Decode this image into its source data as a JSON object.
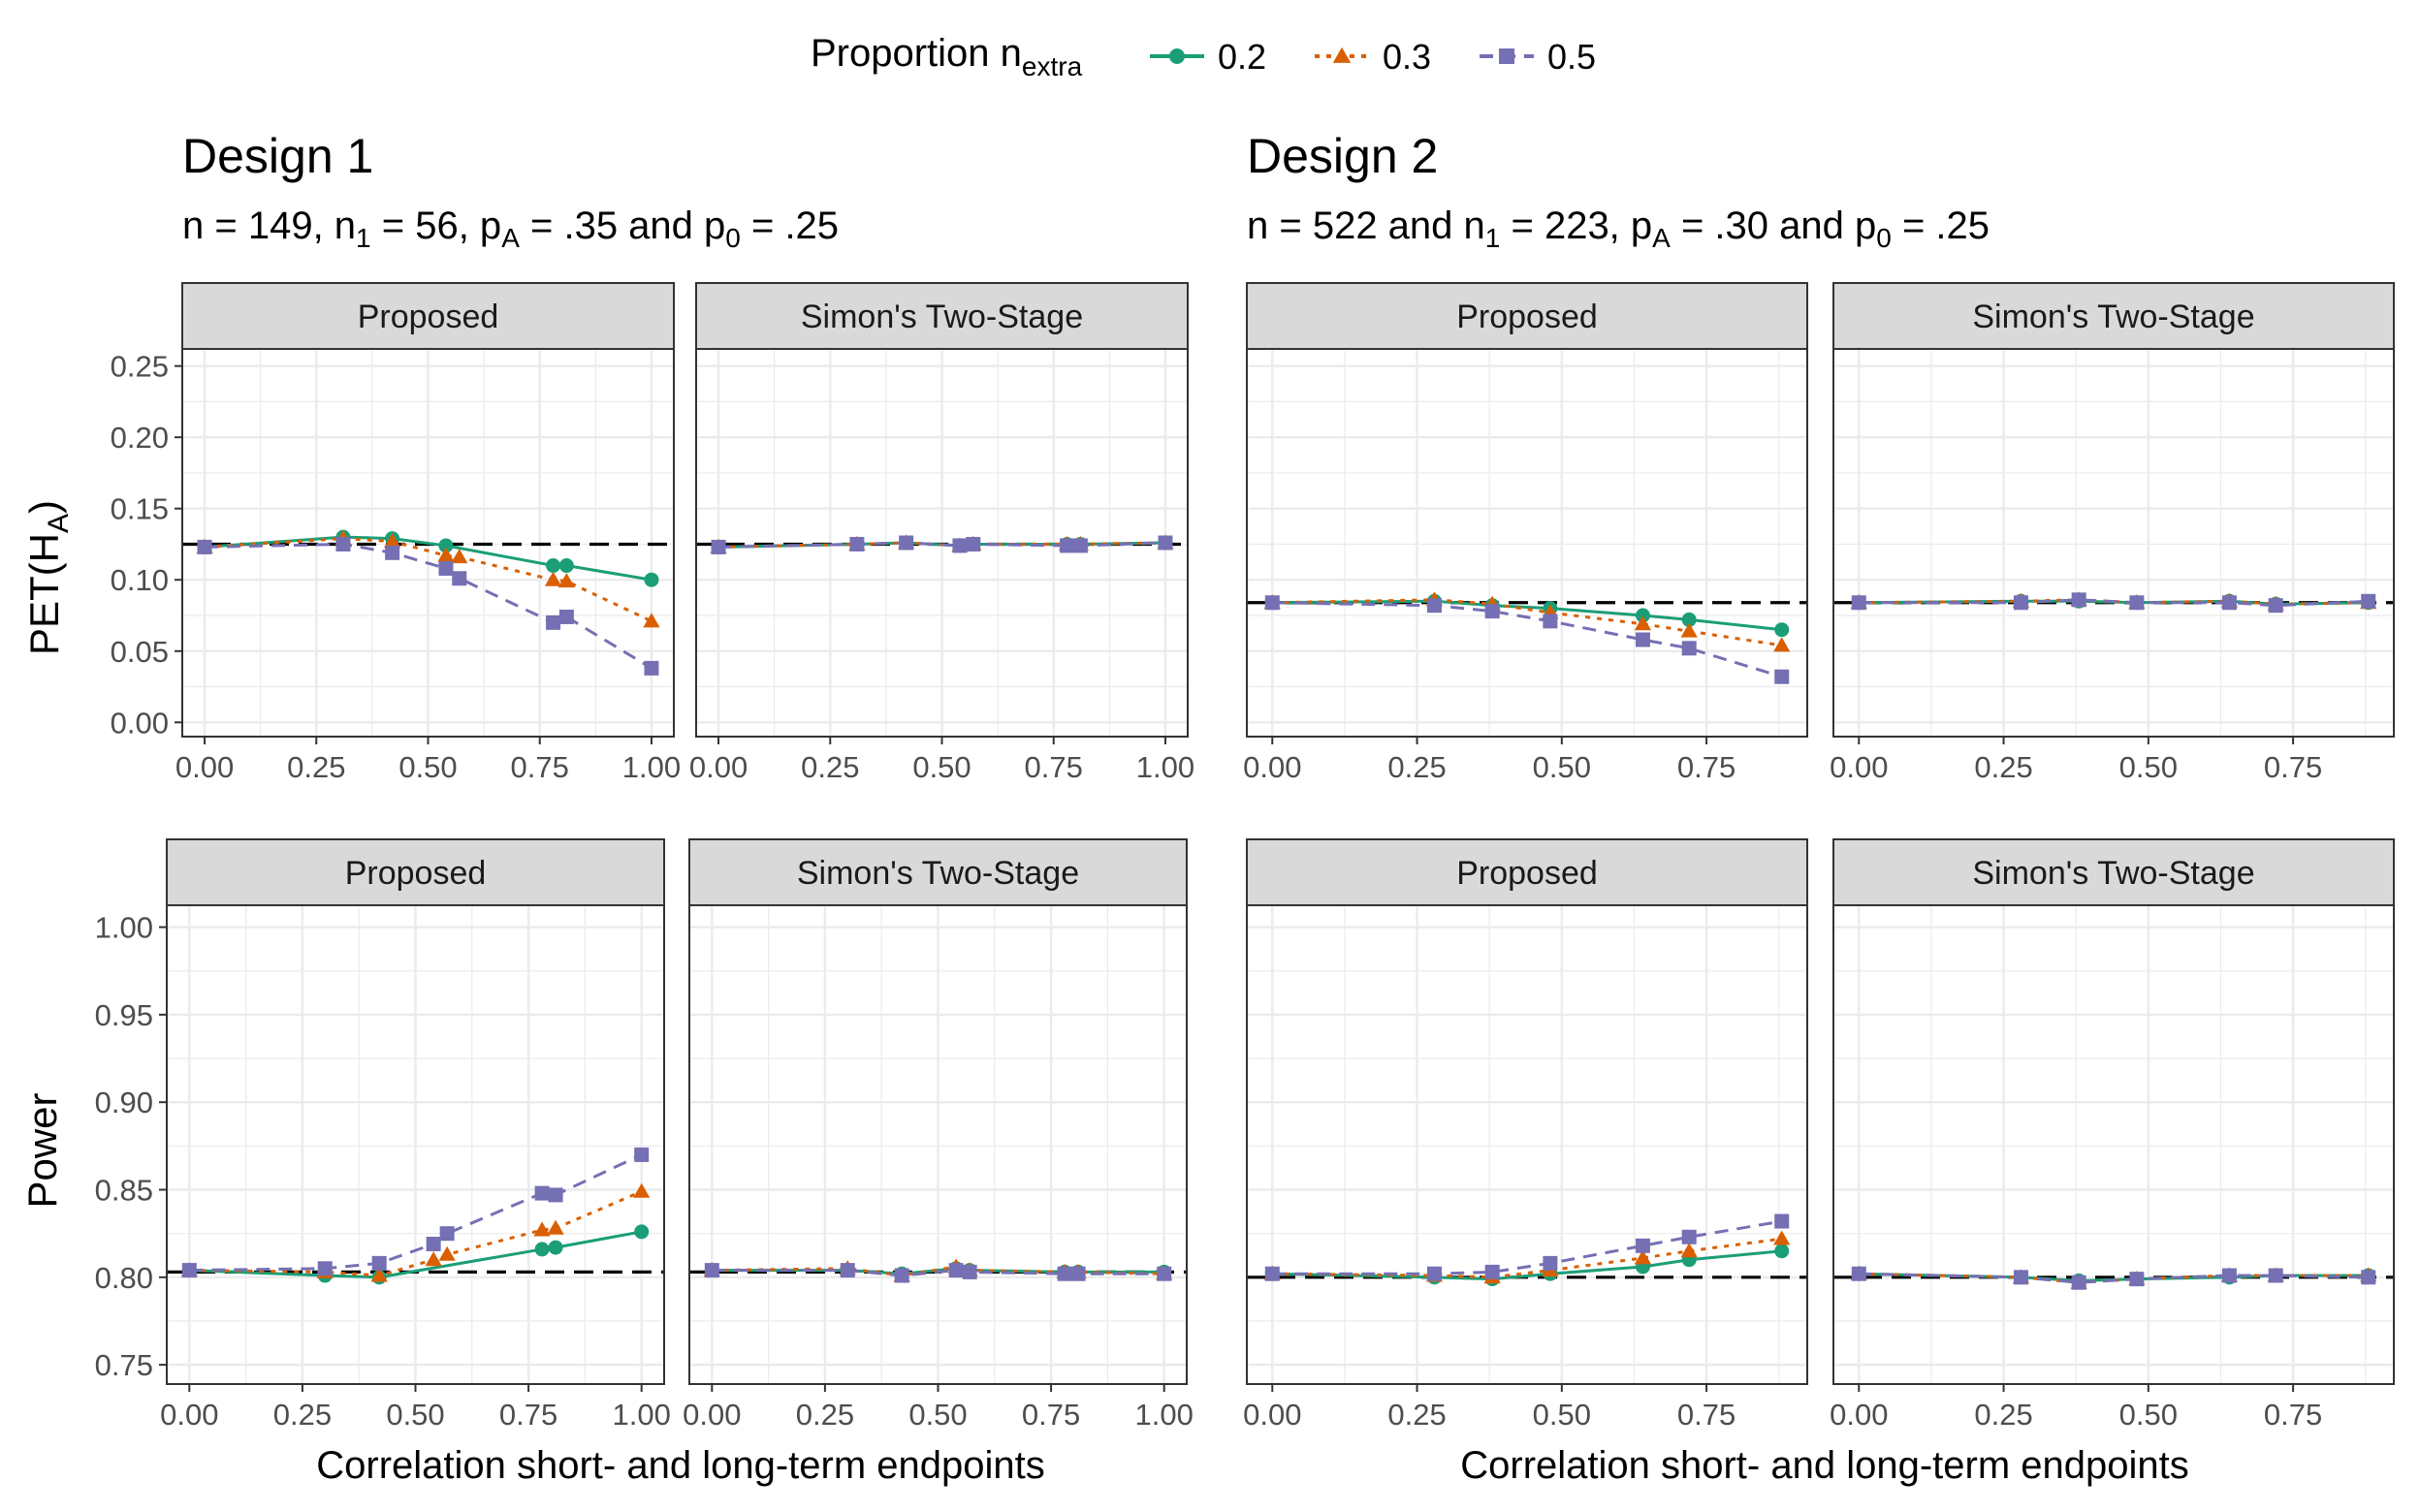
{
  "legend": {
    "title_main": "Proportion n",
    "title_sub": "extra",
    "entries": [
      {
        "label": "0.2",
        "color": "#1B9E77",
        "shape": "circle",
        "dash": "solid"
      },
      {
        "label": "0.3",
        "color": "#D95F02",
        "shape": "triangle",
        "dash": "dotted"
      },
      {
        "label": "0.5",
        "color": "#7570B3",
        "shape": "square",
        "dash": "dashed"
      }
    ]
  },
  "design1": {
    "title": "Design 1",
    "subtitle_parts": [
      {
        "t": "n = 149, n"
      },
      {
        "t": "1",
        "sub": true
      },
      {
        "t": " = 56, p"
      },
      {
        "t": "A",
        "sub": true
      },
      {
        "t": " = .35 and p"
      },
      {
        "t": "0",
        "sub": true
      },
      {
        "t": " = .25"
      }
    ]
  },
  "design2": {
    "title": "Design 2",
    "subtitle_parts": [
      {
        "t": "n = 522 and n"
      },
      {
        "t": "1",
        "sub": true
      },
      {
        "t": " = 223, p"
      },
      {
        "t": "A",
        "sub": true
      },
      {
        "t": " = .30 and p"
      },
      {
        "t": "0",
        "sub": true
      },
      {
        "t": " = .25"
      }
    ]
  },
  "xlabel": "Correlation short- and long-term endpoints",
  "ylabel_pet": {
    "main": "PET(H",
    "sub": "A",
    "close": ")"
  },
  "ylabel_power": "Power",
  "chart_data": [
    {
      "id": "d1-pet-proposed",
      "type": "line",
      "strip": "Proposed",
      "xlim": [
        -0.05,
        1.05
      ],
      "ylim": [
        -0.01,
        0.262
      ],
      "xticks": [
        0,
        0.25,
        0.5,
        0.75,
        1.0
      ],
      "xtick_labels": [
        "0.00",
        "0.25",
        "0.50",
        "0.75",
        "1.00"
      ],
      "yticks": [
        0,
        0.05,
        0.1,
        0.15,
        0.2,
        0.25
      ],
      "ytick_labels": [
        "0.00",
        "0.05",
        "0.10",
        "0.15",
        "0.20",
        "0.25"
      ],
      "reference": 0.125,
      "series": [
        {
          "name": "0.2",
          "x": [
            0,
            0.31,
            0.42,
            0.54,
            0.78,
            0.81,
            1.0
          ],
          "y": [
            0.123,
            0.13,
            0.129,
            0.124,
            0.11,
            0.11,
            0.1
          ]
        },
        {
          "name": "0.3",
          "x": [
            0,
            0.31,
            0.42,
            0.54,
            0.57,
            0.78,
            0.81,
            1.0
          ],
          "y": [
            0.123,
            0.129,
            0.127,
            0.117,
            0.116,
            0.1,
            0.099,
            0.071
          ]
        },
        {
          "name": "0.5",
          "x": [
            0,
            0.31,
            0.42,
            0.54,
            0.57,
            0.78,
            0.81,
            1.0
          ],
          "y": [
            0.123,
            0.125,
            0.119,
            0.108,
            0.101,
            0.07,
            0.074,
            0.038
          ]
        }
      ]
    },
    {
      "id": "d1-pet-simon",
      "type": "line",
      "strip": "Simon's Two-Stage",
      "xlim": [
        -0.05,
        1.05
      ],
      "ylim": [
        -0.01,
        0.262
      ],
      "xticks": [
        0,
        0.25,
        0.5,
        0.75,
        1.0
      ],
      "xtick_labels": [
        "0.00",
        "0.25",
        "0.50",
        "0.75",
        "1.00"
      ],
      "yticks": [
        0,
        0.05,
        0.1,
        0.15,
        0.2,
        0.25
      ],
      "ytick_labels": [],
      "reference": 0.125,
      "series": [
        {
          "name": "0.2",
          "x": [
            0,
            0.31,
            0.42,
            0.54,
            0.57,
            0.78,
            0.81,
            1.0
          ],
          "y": [
            0.123,
            0.125,
            0.126,
            0.124,
            0.125,
            0.125,
            0.125,
            0.126
          ]
        },
        {
          "name": "0.3",
          "x": [
            0,
            0.31,
            0.42,
            0.54,
            0.57,
            0.78,
            0.81,
            1.0
          ],
          "y": [
            0.123,
            0.125,
            0.126,
            0.124,
            0.125,
            0.125,
            0.125,
            0.126
          ]
        },
        {
          "name": "0.5",
          "x": [
            0,
            0.31,
            0.42,
            0.54,
            0.57,
            0.78,
            0.81,
            1.0
          ],
          "y": [
            0.123,
            0.125,
            0.126,
            0.124,
            0.125,
            0.124,
            0.124,
            0.126
          ]
        }
      ]
    },
    {
      "id": "d2-pet-proposed",
      "type": "line",
      "strip": "Proposed",
      "xlim": [
        -0.044,
        0.924
      ],
      "ylim": [
        -0.01,
        0.262
      ],
      "xticks": [
        0,
        0.25,
        0.5,
        0.75
      ],
      "xtick_labels": [
        "0.00",
        "0.25",
        "0.50",
        "0.75"
      ],
      "yticks": [
        0,
        0.05,
        0.1,
        0.15,
        0.2,
        0.25
      ],
      "ytick_labels": [],
      "reference": 0.084,
      "series": [
        {
          "name": "0.2",
          "x": [
            0,
            0.28,
            0.38,
            0.48,
            0.64,
            0.72,
            0.88
          ],
          "y": [
            0.084,
            0.085,
            0.082,
            0.08,
            0.075,
            0.072,
            0.065
          ]
        },
        {
          "name": "0.3",
          "x": [
            0,
            0.28,
            0.38,
            0.48,
            0.64,
            0.72,
            0.88
          ],
          "y": [
            0.084,
            0.086,
            0.083,
            0.077,
            0.069,
            0.064,
            0.054
          ]
        },
        {
          "name": "0.5",
          "x": [
            0,
            0.28,
            0.38,
            0.48,
            0.64,
            0.72,
            0.88
          ],
          "y": [
            0.084,
            0.082,
            0.078,
            0.071,
            0.058,
            0.052,
            0.032
          ]
        }
      ]
    },
    {
      "id": "d2-pet-simon",
      "type": "line",
      "strip": "Simon's Two-Stage",
      "xlim": [
        -0.044,
        0.924
      ],
      "ylim": [
        -0.01,
        0.262
      ],
      "xticks": [
        0,
        0.25,
        0.5,
        0.75
      ],
      "xtick_labels": [
        "0.00",
        "0.25",
        "0.50",
        "0.75"
      ],
      "yticks": [
        0,
        0.05,
        0.1,
        0.15,
        0.2,
        0.25
      ],
      "ytick_labels": [],
      "reference": 0.084,
      "series": [
        {
          "name": "0.2",
          "x": [
            0,
            0.28,
            0.38,
            0.48,
            0.64,
            0.72,
            0.88
          ],
          "y": [
            0.084,
            0.085,
            0.085,
            0.084,
            0.085,
            0.083,
            0.084
          ]
        },
        {
          "name": "0.3",
          "x": [
            0,
            0.28,
            0.38,
            0.48,
            0.64,
            0.72,
            0.88
          ],
          "y": [
            0.084,
            0.085,
            0.086,
            0.084,
            0.085,
            0.083,
            0.084
          ]
        },
        {
          "name": "0.5",
          "x": [
            0,
            0.28,
            0.38,
            0.48,
            0.64,
            0.72,
            0.88
          ],
          "y": [
            0.084,
            0.084,
            0.086,
            0.084,
            0.084,
            0.082,
            0.085
          ]
        }
      ]
    },
    {
      "id": "d1-power-proposed",
      "type": "line",
      "strip": "Proposed",
      "xlim": [
        -0.05,
        1.05
      ],
      "ylim": [
        0.739,
        1.0125
      ],
      "xticks": [
        0,
        0.25,
        0.5,
        0.75,
        1.0
      ],
      "xtick_labels": [
        "0.00",
        "0.25",
        "0.50",
        "0.75",
        "1.00"
      ],
      "yticks": [
        0.75,
        0.8,
        0.85,
        0.9,
        0.95,
        1.0
      ],
      "ytick_labels": [
        "0.75",
        "0.80",
        "0.85",
        "0.90",
        "0.95",
        "1.00"
      ],
      "reference": 0.803,
      "series": [
        {
          "name": "0.2",
          "x": [
            0,
            0.3,
            0.42,
            0.78,
            0.81,
            1.0
          ],
          "y": [
            0.804,
            0.801,
            0.8,
            0.816,
            0.817,
            0.826
          ]
        },
        {
          "name": "0.3",
          "x": [
            0,
            0.3,
            0.42,
            0.54,
            0.57,
            0.78,
            0.81,
            1.0
          ],
          "y": [
            0.804,
            0.803,
            0.801,
            0.81,
            0.813,
            0.827,
            0.828,
            0.849
          ]
        },
        {
          "name": "0.5",
          "x": [
            0,
            0.3,
            0.42,
            0.54,
            0.57,
            0.78,
            0.81,
            1.0
          ],
          "y": [
            0.804,
            0.805,
            0.808,
            0.819,
            0.825,
            0.848,
            0.847,
            0.87
          ]
        }
      ]
    },
    {
      "id": "d1-power-simon",
      "type": "line",
      "strip": "Simon's Two-Stage",
      "xlim": [
        -0.05,
        1.05
      ],
      "ylim": [
        0.739,
        1.0125
      ],
      "xticks": [
        0,
        0.25,
        0.5,
        0.75,
        1.0
      ],
      "xtick_labels": [
        "0.00",
        "0.25",
        "0.50",
        "0.75",
        "1.00"
      ],
      "yticks": [
        0.75,
        0.8,
        0.85,
        0.9,
        0.95,
        1.0
      ],
      "ytick_labels": [],
      "reference": 0.803,
      "series": [
        {
          "name": "0.2",
          "x": [
            0,
            0.3,
            0.42,
            0.54,
            0.57,
            0.78,
            0.81,
            1.0
          ],
          "y": [
            0.804,
            0.804,
            0.802,
            0.805,
            0.804,
            0.803,
            0.803,
            0.803
          ]
        },
        {
          "name": "0.3",
          "x": [
            0,
            0.3,
            0.42,
            0.54,
            0.57,
            0.78,
            0.81,
            1.0
          ],
          "y": [
            0.804,
            0.805,
            0.801,
            0.806,
            0.804,
            0.803,
            0.803,
            0.802
          ]
        },
        {
          "name": "0.5",
          "x": [
            0,
            0.3,
            0.42,
            0.54,
            0.57,
            0.78,
            0.81,
            1.0
          ],
          "y": [
            0.804,
            0.804,
            0.801,
            0.804,
            0.803,
            0.802,
            0.802,
            0.802
          ]
        }
      ]
    },
    {
      "id": "d2-power-proposed",
      "type": "line",
      "strip": "Proposed",
      "xlim": [
        -0.044,
        0.924
      ],
      "ylim": [
        0.739,
        1.0125
      ],
      "xticks": [
        0,
        0.25,
        0.5,
        0.75
      ],
      "xtick_labels": [
        "0.00",
        "0.25",
        "0.50",
        "0.75"
      ],
      "yticks": [
        0.75,
        0.8,
        0.85,
        0.9,
        0.95,
        1.0
      ],
      "ytick_labels": [],
      "reference": 0.8,
      "series": [
        {
          "name": "0.2",
          "x": [
            0,
            0.28,
            0.38,
            0.48,
            0.64,
            0.72,
            0.88
          ],
          "y": [
            0.802,
            0.8,
            0.799,
            0.802,
            0.806,
            0.81,
            0.815
          ]
        },
        {
          "name": "0.3",
          "x": [
            0,
            0.28,
            0.38,
            0.48,
            0.64,
            0.72,
            0.88
          ],
          "y": [
            0.802,
            0.801,
            0.8,
            0.804,
            0.811,
            0.815,
            0.822
          ]
        },
        {
          "name": "0.5",
          "x": [
            0,
            0.28,
            0.38,
            0.48,
            0.64,
            0.72,
            0.88
          ],
          "y": [
            0.802,
            0.802,
            0.803,
            0.808,
            0.818,
            0.823,
            0.832
          ]
        }
      ]
    },
    {
      "id": "d2-power-simon",
      "type": "line",
      "strip": "Simon's Two-Stage",
      "xlim": [
        -0.044,
        0.924
      ],
      "ylim": [
        0.739,
        1.0125
      ],
      "xticks": [
        0,
        0.25,
        0.5,
        0.75
      ],
      "xtick_labels": [
        "0.00",
        "0.25",
        "0.50",
        "0.75"
      ],
      "yticks": [
        0.75,
        0.8,
        0.85,
        0.9,
        0.95,
        1.0
      ],
      "ytick_labels": [],
      "reference": 0.8,
      "series": [
        {
          "name": "0.2",
          "x": [
            0,
            0.28,
            0.38,
            0.48,
            0.64,
            0.72,
            0.88
          ],
          "y": [
            0.802,
            0.8,
            0.798,
            0.799,
            0.8,
            0.801,
            0.801
          ]
        },
        {
          "name": "0.3",
          "x": [
            0,
            0.28,
            0.38,
            0.48,
            0.64,
            0.72,
            0.88
          ],
          "y": [
            0.802,
            0.8,
            0.797,
            0.799,
            0.801,
            0.801,
            0.801
          ]
        },
        {
          "name": "0.5",
          "x": [
            0,
            0.28,
            0.38,
            0.48,
            0.64,
            0.72,
            0.88
          ],
          "y": [
            0.802,
            0.8,
            0.797,
            0.799,
            0.801,
            0.801,
            0.8
          ]
        }
      ]
    }
  ]
}
